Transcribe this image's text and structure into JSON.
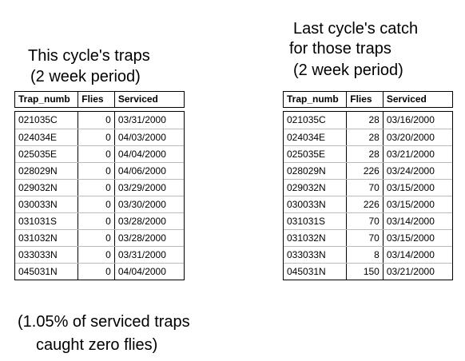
{
  "left": {
    "title_lines": [
      "This cycle's traps",
      "(2 week period)"
    ],
    "table": {
      "header": [
        "Trap_numb",
        "Flies",
        "Serviced"
      ],
      "rows": [
        [
          "021035C",
          "0",
          "03/31/2000"
        ],
        [
          "024034E",
          "0",
          "04/03/2000"
        ],
        [
          "025035E",
          "0",
          "04/04/2000"
        ],
        [
          "028029N",
          "0",
          "04/06/2000"
        ],
        [
          "029032N",
          "0",
          "03/29/2000"
        ],
        [
          "030033N",
          "0",
          "03/30/2000"
        ],
        [
          "031031S",
          "0",
          "03/28/2000"
        ],
        [
          "031032N",
          "0",
          "03/28/2000"
        ],
        [
          "033033N",
          "0",
          "03/31/2000"
        ],
        [
          "045031N",
          "0",
          "04/04/2000"
        ]
      ]
    }
  },
  "right": {
    "title_lines": [
      "Last cycle's catch",
      "for those traps",
      "(2 week period)"
    ],
    "table": {
      "header": [
        "Trap_numb",
        "Flies",
        "Serviced"
      ],
      "rows": [
        [
          "021035C",
          "28",
          "03/16/2000"
        ],
        [
          "024034E",
          "28",
          "03/20/2000"
        ],
        [
          "025035E",
          "28",
          "03/21/2000"
        ],
        [
          "028029N",
          "226",
          "03/24/2000"
        ],
        [
          "029032N",
          "70",
          "03/15/2000"
        ],
        [
          "030033N",
          "226",
          "03/15/2000"
        ],
        [
          "031031S",
          "70",
          "03/14/2000"
        ],
        [
          "031032N",
          "70",
          "03/15/2000"
        ],
        [
          "033033N",
          "8",
          "03/14/2000"
        ],
        [
          "045031N",
          "150",
          "03/21/2000"
        ]
      ]
    }
  },
  "footnote_lines": [
    "(1.05% of serviced traps",
    "caught zero flies)"
  ]
}
